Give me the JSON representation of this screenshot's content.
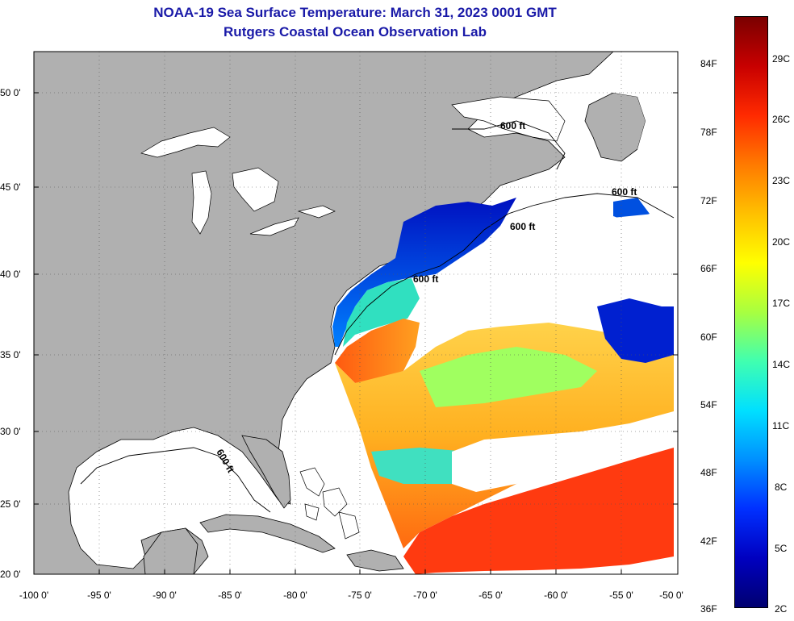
{
  "title": "NOAA-19 Sea Surface Temperature:  March 31, 2023 0001 GMT",
  "subtitle": "Rutgers Coastal Ocean Observation Lab",
  "lat_labels": [
    "50 0'",
    "45 0'",
    "40 0'",
    "35 0'",
    "30 0'",
    "25 0'",
    "20 0'"
  ],
  "lon_labels": [
    "-100 0'",
    "-95 0'",
    "-90 0'",
    "-85 0'",
    "-80 0'",
    "-75 0'",
    "-70 0'",
    "-65 0'",
    "-60 0'",
    "-55 0'",
    "-50 0'"
  ],
  "isobath_label": "600 ft",
  "colorbar": {
    "fahrenheit": [
      "84F",
      "78F",
      "72F",
      "66F",
      "60F",
      "54F",
      "48F",
      "42F",
      "36F"
    ],
    "celsius": [
      "29C",
      "26C",
      "23C",
      "20C",
      "17C",
      "14C",
      "11C",
      "8C",
      "5C",
      "2C"
    ],
    "colors": [
      "#7a0000",
      "#c80000",
      "#ff2a00",
      "#ff7a00",
      "#ffc000",
      "#ffff00",
      "#a8ff40",
      "#40ffb0",
      "#00e0ff",
      "#0090ff",
      "#0030ff",
      "#0000c0",
      "#000070"
    ]
  },
  "colors": {
    "land": "#b0b0b0",
    "title": "#1a1aa8",
    "no_data": "#ffffff"
  }
}
